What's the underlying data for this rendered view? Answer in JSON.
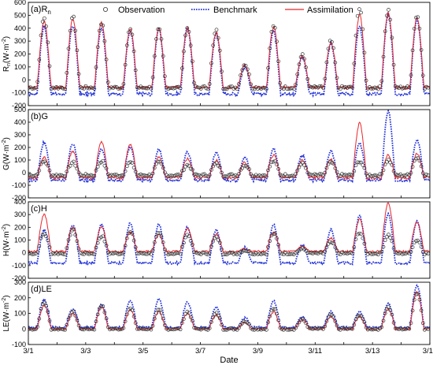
{
  "figure": {
    "xlabel": "Date",
    "x_ticks": [
      "3/1",
      "3/3",
      "3/5",
      "3/7",
      "3/9",
      "3/11",
      "3/13",
      "3/15"
    ],
    "legend": [
      {
        "name": "Observation",
        "style": "circle"
      },
      {
        "name": "Benchmark",
        "style": "dotted"
      },
      {
        "name": "Assimilation",
        "style": "solid"
      }
    ],
    "colors": {
      "observation": "#333333",
      "benchmark": "#1f2fd8",
      "assimilation": "#e8262b",
      "axis": "#000000"
    }
  },
  "chart_data": [
    {
      "type": "line",
      "panel_label": "(a)R",
      "panel_label_sub": "n",
      "ylabel_main": "R",
      "ylabel_sub": "n",
      "ylabel_rest": "(W·m",
      "ylabel_sup": "-2",
      "ylabel_end": ")",
      "ylim": [
        -200,
        600
      ],
      "yticks": [
        -200,
        -100,
        0,
        100,
        200,
        300,
        400,
        500,
        600
      ],
      "xlim": [
        1,
        15
      ],
      "daily_peaks": {
        "days": [
          1.55,
          2.55,
          3.55,
          4.55,
          5.55,
          6.55,
          7.55,
          8.55,
          9.55,
          10.55,
          11.55,
          12.55,
          13.55,
          14.55
        ],
        "observation": [
          480,
          490,
          440,
          390,
          390,
          400,
          380,
          120,
          420,
          190,
          300,
          560,
          540,
          500
        ],
        "benchmark": [
          410,
          420,
          410,
          380,
          390,
          400,
          360,
          100,
          380,
          180,
          280,
          410,
          500,
          470
        ],
        "assimilation": [
          450,
          470,
          440,
          390,
          395,
          400,
          370,
          110,
          410,
          185,
          290,
          500,
          520,
          480
        ],
        "obs_night": -60,
        "bench_night": -110,
        "assim_night": -60
      }
    },
    {
      "type": "line",
      "panel_label": "(b)G",
      "ylabel_main": "G(W·m",
      "ylabel_sup": "-2",
      "ylabel_end": ")",
      "ylim": [
        -200,
        500
      ],
      "yticks": [
        -200,
        -100,
        0,
        100,
        200,
        300,
        400,
        500
      ],
      "xlim": [
        1,
        15
      ],
      "daily_peaks": {
        "days": [
          1.55,
          2.55,
          3.55,
          4.55,
          5.55,
          6.55,
          7.55,
          8.55,
          9.55,
          10.55,
          11.55,
          12.55,
          13.55,
          14.55
        ],
        "observation": [
          90,
          80,
          90,
          80,
          80,
          60,
          70,
          60,
          90,
          70,
          80,
          90,
          100,
          120
        ],
        "benchmark": [
          240,
          230,
          190,
          200,
          180,
          160,
          160,
          120,
          190,
          140,
          170,
          230,
          480,
          260
        ],
        "assimilation": [
          120,
          170,
          240,
          220,
          120,
          110,
          100,
          80,
          140,
          100,
          110,
          390,
          140,
          150
        ],
        "obs_night": -20,
        "bench_night": -60,
        "assim_night": -40
      }
    },
    {
      "type": "line",
      "panel_label": "(c)H",
      "ylabel_main": "H(W·m",
      "ylabel_sup": "-2",
      "ylabel_end": ")",
      "ylim": [
        -200,
        400
      ],
      "yticks": [
        -200,
        -100,
        0,
        100,
        200,
        300,
        400
      ],
      "xlim": [
        1,
        15
      ],
      "daily_peaks": {
        "days": [
          1.55,
          2.55,
          3.55,
          4.55,
          5.55,
          6.55,
          7.55,
          8.55,
          9.55,
          10.55,
          11.55,
          12.55,
          13.55,
          14.55
        ],
        "observation": [
          150,
          180,
          130,
          160,
          150,
          140,
          120,
          20,
          150,
          30,
          80,
          160,
          140,
          100
        ],
        "benchmark": [
          180,
          220,
          230,
          230,
          220,
          200,
          180,
          40,
          220,
          60,
          180,
          290,
          300,
          250
        ],
        "assimilation": [
          300,
          200,
          200,
          160,
          140,
          190,
          150,
          30,
          160,
          50,
          120,
          260,
          390,
          240
        ],
        "obs_night": -5,
        "bench_night": -80,
        "assim_night": 10
      }
    },
    {
      "type": "line",
      "panel_label": "(d)LE",
      "ylabel_main": "LE(W·m",
      "ylabel_sup": "-2",
      "ylabel_end": ")",
      "ylim": [
        -100,
        300
      ],
      "yticks": [
        -100,
        0,
        100,
        200,
        300
      ],
      "xlim": [
        1,
        15
      ],
      "daily_peaks": {
        "days": [
          1.55,
          2.55,
          3.55,
          4.55,
          5.55,
          6.55,
          7.55,
          8.55,
          9.55,
          10.55,
          11.55,
          12.55,
          13.55,
          14.55
        ],
        "observation": [
          170,
          110,
          150,
          130,
          120,
          110,
          100,
          50,
          130,
          60,
          90,
          90,
          140,
          230
        ],
        "benchmark": [
          190,
          130,
          160,
          180,
          190,
          170,
          140,
          70,
          180,
          80,
          110,
          110,
          160,
          280
        ],
        "assimilation": [
          150,
          100,
          140,
          120,
          110,
          100,
          90,
          40,
          110,
          60,
          80,
          80,
          130,
          240
        ],
        "obs_night": 0,
        "bench_night": 10,
        "assim_night": 0
      }
    }
  ]
}
